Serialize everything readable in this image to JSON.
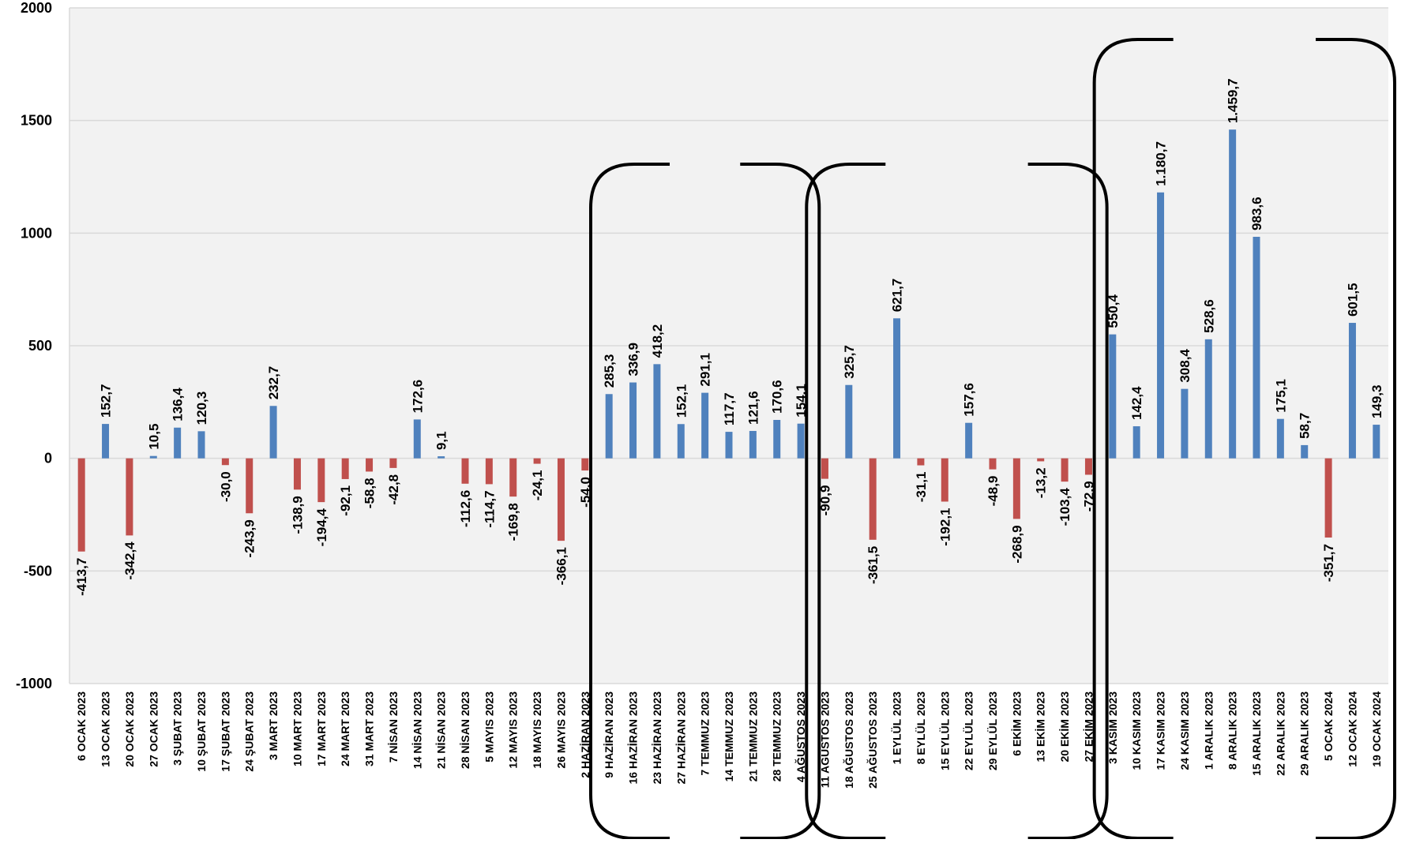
{
  "chart_data": {
    "type": "bar",
    "title": "",
    "xlabel": "",
    "ylabel": "",
    "ylim": [
      -1000,
      2000
    ],
    "yticks": [
      -1000,
      -500,
      0,
      500,
      1000,
      1500,
      2000
    ],
    "grid": true,
    "legend": "none",
    "colors": {
      "positive": "#4F81BD",
      "negative": "#C0504D",
      "grid": "#D9D9D9",
      "plot_bg": "#F2F2F2",
      "bracket": "#000000"
    },
    "bracket_groups": [
      {
        "start": "9 HAZİRAN 2023",
        "end": "4 AĞUSTOS 2023"
      },
      {
        "start": "11 AĞUSTOS 2023",
        "end": "27 EKİM 2023"
      },
      {
        "start": "3 KASIM 2023",
        "end": "19 OCAK 2024"
      }
    ],
    "categories": [
      "6 OCAK 2023",
      "13 OCAK 2023",
      "20 OCAK 2023",
      "27 OCAK 2023",
      "3 ŞUBAT 2023",
      "10 ŞUBAT 2023",
      "17 ŞUBAT 2023",
      "24 ŞUBAT 2023",
      "3 MART 2023",
      "10 MART 2023",
      "17 MART 2023",
      "24 MART 2023",
      "31 MART 2023",
      "7 NİSAN 2023",
      "14 NİSAN 2023",
      "21 NİSAN 2023",
      "28 NİSAN 2023",
      "5 MAYIS 2023",
      "12 MAYIS 2023",
      "18 MAYIS 2023",
      "26 MAYIS 2023",
      "2 HAZİRAN 2023",
      "9 HAZİRAN 2023",
      "16 HAZİRAN 2023",
      "23 HAZİRAN 2023",
      "27 HAZİRAN 2023",
      "7 TEMMUZ 2023",
      "14 TEMMUZ 2023",
      "21 TEMMUZ 2023",
      "28 TEMMUZ 2023",
      "4 AĞUSTOS 2023",
      "11 AĞUSTOS 2023",
      "18 AĞUSTOS 2023",
      "25 AĞUSTOS 2023",
      "1 EYLÜL 2023",
      "8 EYLÜL 2023",
      "15 EYLÜL 2023",
      "22 EYLÜL 2023",
      "29 EYLÜL 2023",
      "6 EKİM 2023",
      "13 EKİM 2023",
      "20 EKİM 2023",
      "27 EKİM 2023",
      "3 KASIM 2023",
      "10 KASIM 2023",
      "17 KASIM 2023",
      "24 KASIM 2023",
      "1 ARALIK 2023",
      "8 ARALIK 2023",
      "15 ARALIK 2023",
      "22 ARALIK 2023",
      "29 ARALIK 2023",
      "5 OCAK 2024",
      "12 OCAK 2024",
      "19 OCAK 2024"
    ],
    "values": [
      -413.7,
      152.7,
      -342.4,
      10.5,
      136.4,
      120.3,
      -30.0,
      -243.9,
      232.7,
      -138.9,
      -194.4,
      -92.1,
      -58.8,
      -42.8,
      172.6,
      9.1,
      -112.6,
      -114.7,
      -169.8,
      -24.1,
      -366.1,
      -54.0,
      285.3,
      336.9,
      418.2,
      152.1,
      291.1,
      117.7,
      121.6,
      170.6,
      154.1,
      -90.9,
      325.7,
      -361.5,
      621.7,
      -31.1,
      -192.1,
      157.6,
      -48.9,
      -268.9,
      -13.2,
      -103.4,
      -72.9,
      550.4,
      142.4,
      1180.7,
      308.4,
      528.6,
      1459.7,
      983.6,
      175.1,
      58.7,
      -351.7,
      601.5,
      149.3
    ],
    "data_labels": [
      "-413,7",
      "152,7",
      "-342,4",
      "10,5",
      "136,4",
      "120,3",
      "-30,0",
      "-243,9",
      "232,7",
      "-138,9",
      "-194,4",
      "-92,1",
      "-58,8",
      "-42,8",
      "172,6",
      "9,1",
      "-112,6",
      "-114,7",
      "-169,8",
      "-24,1",
      "-366,1",
      "-54,0",
      "285,3",
      "336,9",
      "418,2",
      "152,1",
      "291,1",
      "117,7",
      "121,6",
      "170,6",
      "154,1",
      "-90,9",
      "325,7",
      "-361,5",
      "621,7",
      "-31,1",
      "-192,1",
      "157,6",
      "-48,9",
      "-268,9",
      "-13,2",
      "-103,4",
      "-72,9",
      "550,4",
      "142,4",
      "1.180,7",
      "308,4",
      "528,6",
      "1.459,7",
      "983,6",
      "175,1",
      "58,7",
      "-351,7",
      "601,5",
      "149,3"
    ]
  }
}
